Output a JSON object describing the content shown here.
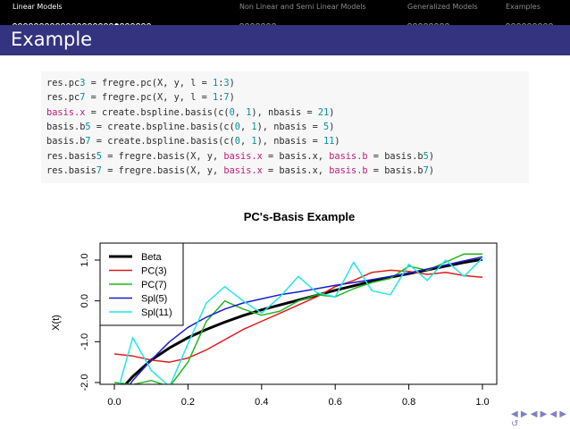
{
  "nav": {
    "sections": [
      {
        "label": "Linear Models",
        "active": true,
        "dots": 26,
        "current": 19
      },
      {
        "label": "Non Linear and Semi Linear Models",
        "active": false,
        "dots": 7,
        "current": -1
      },
      {
        "label": "Generalized Models",
        "active": false,
        "dots": 8,
        "current": -1
      },
      {
        "label": "Examples",
        "active": false,
        "dots": 9,
        "current": -1
      }
    ]
  },
  "frame": {
    "title": "Example"
  },
  "code": {
    "lines": [
      "res.pc3 = fregre.pc(X, y, l = 1:3)",
      "res.pc7 = fregre.pc(X, y, l = 1:7)",
      "basis.x = create.bspline.basis(c(0, 1), nbasis = 21)",
      "basis.b5 = create.bspline.basis(c(0, 1), nbasis = 5)",
      "basis.b7 = create.bspline.basis(c(0, 1), nbasis = 11)",
      "res.basis5 = fregre.basis(X, y, basis.x = basis.x, basis.b = basis.b5)",
      "res.basis7 = fregre.basis(X, y, basis.x = basis.x, basis.b = basis.b7)"
    ]
  },
  "chart_data": {
    "type": "line",
    "title": "PC's-Basis Example",
    "xlabel": "",
    "ylabel": "X(t)",
    "xlim": [
      0,
      1
    ],
    "ylim": [
      -2.3,
      1.3
    ],
    "xticks": [
      "0.0",
      "0.2",
      "0.4",
      "0.6",
      "0.8",
      "1.0"
    ],
    "yticks": [
      "-2.0",
      "-1.0",
      "0.0",
      "1.0"
    ],
    "legend_position": "top-left",
    "x": [
      0,
      0.05,
      0.1,
      0.15,
      0.2,
      0.25,
      0.3,
      0.35,
      0.4,
      0.45,
      0.5,
      0.55,
      0.6,
      0.65,
      0.7,
      0.75,
      0.8,
      0.85,
      0.9,
      0.95,
      1.0
    ],
    "series": [
      {
        "name": "Beta",
        "color": "#000000",
        "width": 3,
        "values": [
          -2.35,
          -1.85,
          -1.45,
          -1.15,
          -0.9,
          -0.7,
          -0.52,
          -0.36,
          -0.22,
          -0.1,
          0.02,
          0.14,
          0.26,
          0.37,
          0.48,
          0.58,
          0.67,
          0.76,
          0.85,
          0.94,
          1.02
        ]
      },
      {
        "name": "PC(3)",
        "color": "#df1c1c",
        "width": 1.5,
        "values": [
          -1.3,
          -1.35,
          -1.45,
          -1.5,
          -1.4,
          -1.2,
          -0.95,
          -0.7,
          -0.5,
          -0.3,
          -0.1,
          0.1,
          0.35,
          0.5,
          0.7,
          0.75,
          0.72,
          0.65,
          0.7,
          0.62,
          0.58
        ]
      },
      {
        "name": "PC(7)",
        "color": "#22b522",
        "width": 1.5,
        "values": [
          -2.0,
          -2.05,
          -1.95,
          -2.1,
          -1.5,
          -0.5,
          0.0,
          -0.2,
          -0.35,
          -0.25,
          0.0,
          0.15,
          0.1,
          0.3,
          0.45,
          0.55,
          0.85,
          0.75,
          0.95,
          1.15,
          1.15
        ]
      },
      {
        "name": "Spl(5)",
        "color": "#1c1cc8",
        "width": 1.5,
        "values": [
          -2.6,
          -1.95,
          -1.45,
          -1.0,
          -0.65,
          -0.4,
          -0.2,
          -0.05,
          0.05,
          0.15,
          0.22,
          0.3,
          0.38,
          0.45,
          0.52,
          0.6,
          0.68,
          0.78,
          0.88,
          0.98,
          1.08
        ]
      },
      {
        "name": "Spl(11)",
        "color": "#22e5e5",
        "width": 1.5,
        "values": [
          -2.5,
          -0.9,
          -1.7,
          -2.1,
          -1.05,
          -0.05,
          0.35,
          0.0,
          -0.3,
          0.1,
          0.6,
          0.2,
          0.1,
          0.95,
          0.25,
          0.15,
          0.9,
          0.5,
          1.0,
          0.6,
          1.05
        ]
      }
    ]
  }
}
